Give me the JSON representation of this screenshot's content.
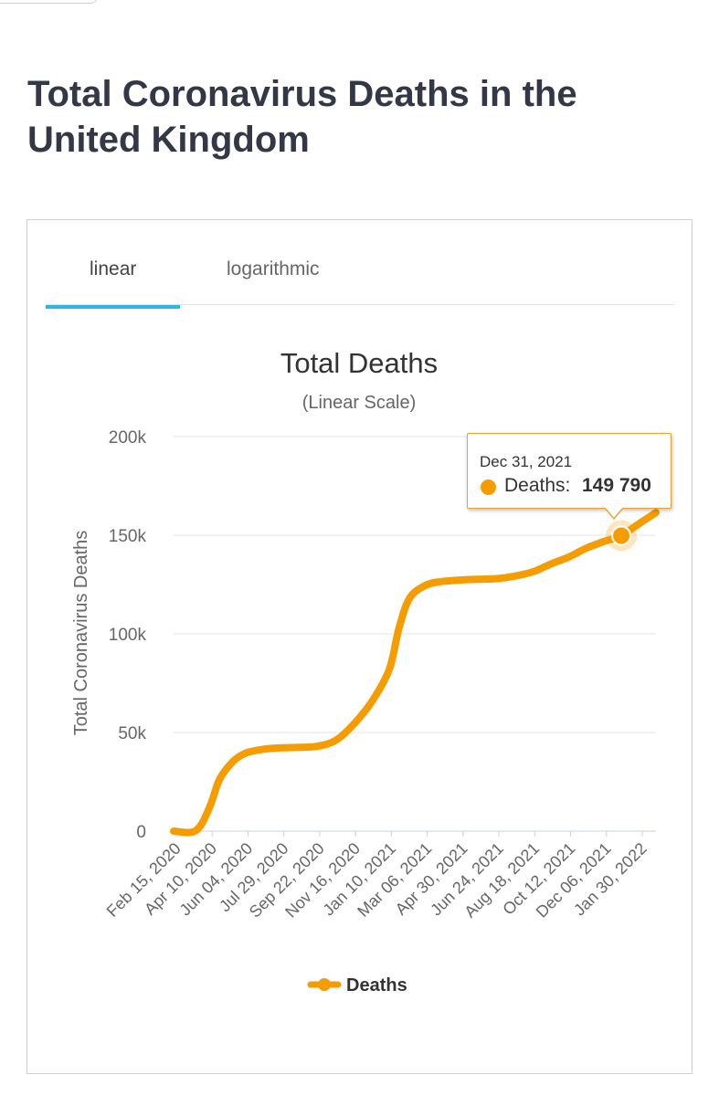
{
  "page": {
    "title": "Total Coronavirus Deaths in the United Kingdom"
  },
  "tabs": [
    {
      "label": "linear",
      "active": true
    },
    {
      "label": "logarithmic",
      "active": false
    }
  ],
  "colors": {
    "series": "#f59c00",
    "tab_accent": "#2fb5e5",
    "title": "#333847"
  },
  "tooltip": {
    "date": "Dec 31, 2021",
    "label": "Deaths:",
    "value": "149 790"
  },
  "chart_data": {
    "type": "line",
    "title": "Total Deaths",
    "subtitle": "(Linear Scale)",
    "xlabel": "",
    "ylabel": "Total Coronavirus Deaths",
    "ylim": [
      0,
      200000
    ],
    "y_ticks": [
      0,
      50000,
      100000,
      150000,
      200000
    ],
    "y_tick_labels": [
      "0",
      "50k",
      "100k",
      "150k",
      "200k"
    ],
    "x_tick_labels": [
      "Feb 15, 2020",
      "Apr 10, 2020",
      "Jun 04, 2020",
      "Jul 29, 2020",
      "Sep 22, 2020",
      "Nov 16, 2020",
      "Jan 10, 2021",
      "Mar 06, 2021",
      "Apr 30, 2021",
      "Jun 24, 2021",
      "Aug 18, 2021",
      "Oct 12, 2021",
      "Dec 06, 2021",
      "Jan 30, 2022"
    ],
    "grid": true,
    "legend_position": "bottom",
    "series": [
      {
        "name": "Deaths",
        "points": [
          [
            "2020-02-15",
            0
          ],
          [
            "2020-03-20",
            200
          ],
          [
            "2020-04-10",
            12000
          ],
          [
            "2020-04-25",
            26000
          ],
          [
            "2020-05-15",
            35000
          ],
          [
            "2020-06-04",
            39500
          ],
          [
            "2020-07-01",
            41500
          ],
          [
            "2020-07-29",
            42200
          ],
          [
            "2020-08-25",
            42500
          ],
          [
            "2020-09-22",
            43000
          ],
          [
            "2020-10-20",
            46000
          ],
          [
            "2020-11-16",
            54000
          ],
          [
            "2020-12-15",
            66000
          ],
          [
            "2021-01-10",
            82000
          ],
          [
            "2021-01-25",
            103000
          ],
          [
            "2021-02-10",
            118000
          ],
          [
            "2021-03-06",
            124500
          ],
          [
            "2021-03-30",
            126500
          ],
          [
            "2021-04-30",
            127300
          ],
          [
            "2021-05-30",
            127700
          ],
          [
            "2021-06-24",
            128000
          ],
          [
            "2021-07-20",
            129200
          ],
          [
            "2021-08-18",
            131500
          ],
          [
            "2021-09-15",
            135500
          ],
          [
            "2021-10-12",
            139000
          ],
          [
            "2021-11-08",
            143500
          ],
          [
            "2021-12-06",
            147000
          ],
          [
            "2021-12-31",
            149790
          ],
          [
            "2022-01-30",
            156500
          ],
          [
            "2022-02-22",
            161500
          ]
        ]
      }
    ],
    "highlight": {
      "date": "2021-12-31",
      "value": 149790
    }
  }
}
